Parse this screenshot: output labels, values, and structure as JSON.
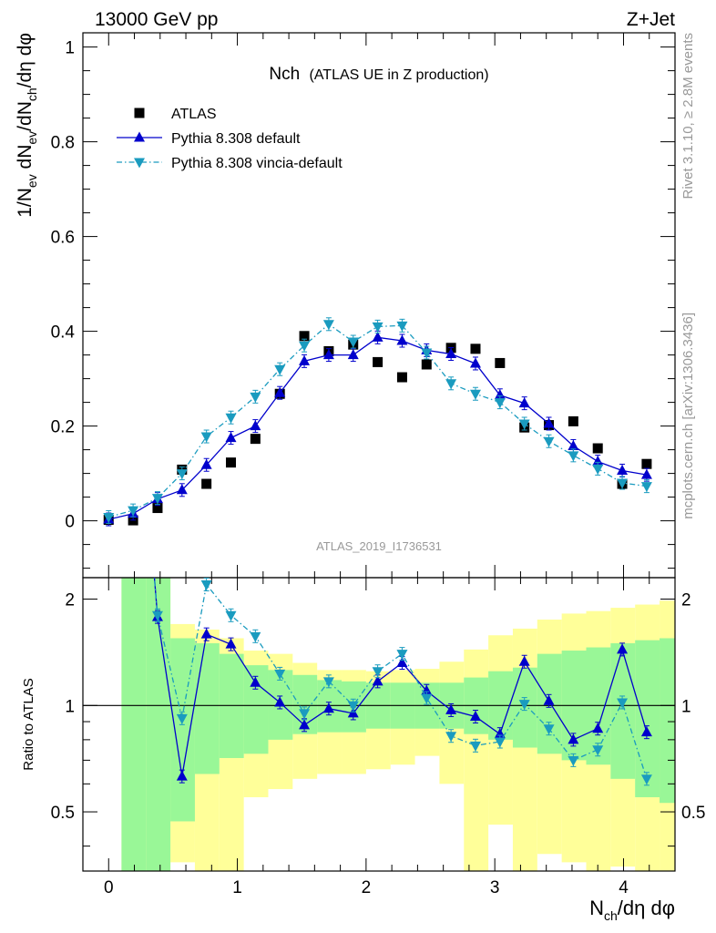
{
  "header": {
    "left": "13000 GeV pp",
    "right": "Z+Jet"
  },
  "side_labels": {
    "rivet": "Rivet 3.1.10, ≥ 2.8M events",
    "mcplots": "mcplots.cern.ch [arXiv:1306.3436]"
  },
  "chart_data": {
    "type": "scatter",
    "title": "Nch",
    "subtitle": "(ATLAS UE in Z production)",
    "analysis_id": "ATLAS_2019_I1736531",
    "xlabel": {
      "main": "N",
      "sub": "ch",
      "tail": "/dη dφ"
    },
    "ylabel": {
      "p1": "1/N",
      "s1": "ev",
      "p2": " dN",
      "s2": "ev",
      "p3": "/dN",
      "s3": "ch",
      "p4": "/dη dφ"
    },
    "ratio_ylabel": "Ratio to ATLAS",
    "xlim": [
      -0.2,
      4.4
    ],
    "ylim": [
      -0.12,
      1.03
    ],
    "ratio_ylim": [
      0.34,
      2.3
    ],
    "ratio_yscale": "log",
    "x_ticks": [
      "0",
      "1",
      "2",
      "3",
      "4"
    ],
    "y_ticks": [
      "0",
      "0.2",
      "0.4",
      "0.6",
      "0.8",
      "1"
    ],
    "ratio_ticks": [
      "0.5",
      "1",
      "2"
    ],
    "legend_position": "top-left",
    "x": [
      0.0,
      0.19,
      0.38,
      0.57,
      0.76,
      0.95,
      1.14,
      1.33,
      1.52,
      1.71,
      1.9,
      2.09,
      2.28,
      2.47,
      2.66,
      2.85,
      3.04,
      3.23,
      3.42,
      3.61,
      3.8,
      3.99,
      4.18
    ],
    "bin_edges": [
      0.1,
      0.29,
      0.48,
      0.67,
      0.86,
      1.05,
      1.24,
      1.43,
      1.62,
      1.81,
      2.0,
      2.19,
      2.38,
      2.57,
      2.76,
      2.95,
      3.14,
      3.33,
      3.52,
      3.71,
      3.9,
      4.09,
      4.28
    ],
    "series": [
      {
        "name": "ATLAS",
        "style": "marker-square",
        "color": "#000000",
        "values": [
          0.002,
          0.001,
          0.027,
          0.108,
          0.078,
          0.123,
          0.173,
          0.268,
          0.39,
          0.358,
          0.372,
          0.335,
          0.303,
          0.33,
          0.365,
          0.363,
          0.333,
          0.197,
          0.202,
          0.21,
          0.153,
          0.078,
          0.12
        ]
      },
      {
        "name": "Pythia 8.308 default",
        "style": "solid-triangle-up",
        "color": "#0000cc",
        "values": [
          0.003,
          0.015,
          0.046,
          0.065,
          0.118,
          0.175,
          0.2,
          0.27,
          0.337,
          0.35,
          0.35,
          0.387,
          0.38,
          0.36,
          0.352,
          0.332,
          0.265,
          0.248,
          0.205,
          0.158,
          0.125,
          0.106,
          0.097
        ],
        "ratio": [
          null,
          null,
          1.78,
          0.63,
          1.59,
          1.49,
          1.16,
          1.02,
          0.88,
          0.98,
          0.95,
          1.17,
          1.32,
          1.1,
          0.97,
          0.93,
          0.83,
          1.33,
          1.03,
          0.8,
          0.86,
          1.44,
          0.84
        ]
      },
      {
        "name": "Pythia 8.308 vincia-default",
        "style": "dashdot-triangle-down",
        "color": "#1a9bbf",
        "values": [
          0.008,
          0.022,
          0.048,
          0.1,
          0.178,
          0.218,
          0.262,
          0.32,
          0.37,
          0.415,
          0.378,
          0.41,
          0.412,
          0.355,
          0.29,
          0.268,
          0.25,
          0.205,
          0.168,
          0.138,
          0.11,
          0.08,
          0.073
        ],
        "ratio": [
          null,
          null,
          1.8,
          0.92,
          2.2,
          1.8,
          1.57,
          1.23,
          0.95,
          1.17,
          1.0,
          1.25,
          1.4,
          1.05,
          0.82,
          0.77,
          0.79,
          1.01,
          0.86,
          0.7,
          0.75,
          1.02,
          0.62
        ]
      }
    ],
    "ratio_bands": {
      "inner_color": "#99f797",
      "outer_color": "#ffff99",
      "inner_lo": [
        0.3,
        0.3,
        0.47,
        0.64,
        0.71,
        0.73,
        0.8,
        0.83,
        0.84,
        0.84,
        0.86,
        0.86,
        0.86,
        0.86,
        0.83,
        0.8,
        0.76,
        0.73,
        0.7,
        0.68,
        0.62,
        0.55,
        0.53
      ],
      "inner_hi": [
        3.0,
        3.0,
        1.55,
        1.5,
        1.4,
        1.3,
        1.26,
        1.22,
        1.18,
        1.17,
        1.16,
        1.16,
        1.16,
        1.16,
        1.2,
        1.25,
        1.28,
        1.4,
        1.43,
        1.46,
        1.5,
        1.53,
        1.55
      ],
      "outer_lo": [
        0.3,
        0.3,
        0.36,
        0.3,
        0.3,
        0.55,
        0.58,
        0.62,
        0.64,
        0.64,
        0.66,
        0.68,
        0.72,
        0.6,
        0.3,
        0.46,
        0.3,
        0.38,
        0.36,
        0.3,
        0.35,
        0.3,
        0.3
      ],
      "outer_hi": [
        3.0,
        3.0,
        1.7,
        1.64,
        1.55,
        1.43,
        1.4,
        1.32,
        1.26,
        1.26,
        1.25,
        1.26,
        1.27,
        1.33,
        1.44,
        1.58,
        1.65,
        1.75,
        1.82,
        1.85,
        1.89,
        1.93,
        1.98
      ]
    }
  }
}
